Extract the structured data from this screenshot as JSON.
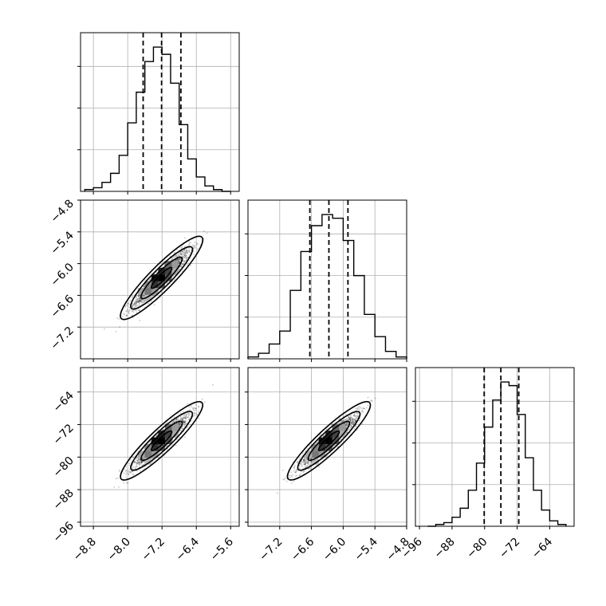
{
  "chart_data": {
    "type": "corner",
    "n_params": 3,
    "params": [
      {
        "name": "",
        "range": [
          -9.1,
          -5.4
        ],
        "ticks": [
          "-8.8",
          "-8.0",
          "-7.2",
          "-6.4",
          "-5.6"
        ],
        "tick_values": [
          -8.8,
          -8.0,
          -7.2,
          -6.4,
          -5.6
        ],
        "quantiles": [
          -7.64,
          -7.21,
          -6.76
        ],
        "hist": {
          "bins": [
            -9.0,
            -8.8,
            -8.6,
            -8.4,
            -8.2,
            -8.0,
            -7.8,
            -7.6,
            -7.4,
            -7.2,
            -7.0,
            -6.8,
            -6.6,
            -6.4,
            -6.2,
            -6.0,
            -5.8,
            -5.6
          ],
          "counts": [
            1,
            2,
            5,
            10,
            20,
            38,
            55,
            72,
            80,
            76,
            60,
            37,
            18,
            8,
            3,
            1,
            0
          ]
        }
      },
      {
        "name": "",
        "range": [
          -7.8,
          -4.8
        ],
        "ticks": [
          "-7.2",
          "-6.6",
          "-6.0",
          "-5.4",
          "-4.8"
        ],
        "tick_values": [
          -7.2,
          -6.6,
          -6.0,
          -5.4,
          -4.8
        ],
        "left_ticks": [
          "-4.8",
          "-5.4",
          "-6.0",
          "-6.6",
          "-7.2"
        ],
        "quantiles": [
          -6.63,
          -6.27,
          -5.91
        ],
        "hist": {
          "bins": [
            -7.8,
            -7.6,
            -7.4,
            -7.2,
            -7.0,
            -6.8,
            -6.6,
            -6.4,
            -6.2,
            -6.0,
            -5.8,
            -5.6,
            -5.4,
            -5.2,
            -5.0,
            -4.8
          ],
          "counts": [
            1,
            3,
            8,
            15,
            37,
            58,
            72,
            78,
            76,
            64,
            45,
            24,
            12,
            4,
            1
          ]
        }
      },
      {
        "name": "",
        "range": [
          -97,
          -58
        ],
        "ticks": [
          "-96",
          "-88",
          "-80",
          "-72",
          "-64"
        ],
        "tick_values": [
          -96,
          -88,
          -80,
          -72,
          -64
        ],
        "left_ticks": [
          "-64",
          "-72",
          "-80",
          "-88",
          "-96"
        ],
        "quantiles": [
          -80.1,
          -76.0,
          -71.6
        ],
        "hist": {
          "bins": [
            -94,
            -92,
            -90,
            -88,
            -86,
            -84,
            -82,
            -80,
            -78,
            -76,
            -74,
            -72,
            -70,
            -68,
            -66,
            -64,
            -62,
            -60
          ],
          "counts": [
            0,
            1,
            2,
            5,
            10,
            20,
            35,
            55,
            70,
            80,
            78,
            62,
            38,
            20,
            9,
            3,
            1
          ]
        }
      }
    ],
    "pairs": [
      {
        "row": 1,
        "col": 0,
        "mean": [
          -7.21,
          -6.27
        ],
        "sd": [
          0.33,
          0.27
        ],
        "rho": 0.93
      },
      {
        "row": 2,
        "col": 0,
        "mean": [
          -7.21,
          -76.0
        ],
        "sd": [
          0.33,
          3.3
        ],
        "rho": 0.93
      },
      {
        "row": 2,
        "col": 1,
        "mean": [
          -6.27,
          -76.0
        ],
        "sd": [
          0.27,
          3.3
        ],
        "rho": 0.93
      }
    ],
    "grid": true
  }
}
